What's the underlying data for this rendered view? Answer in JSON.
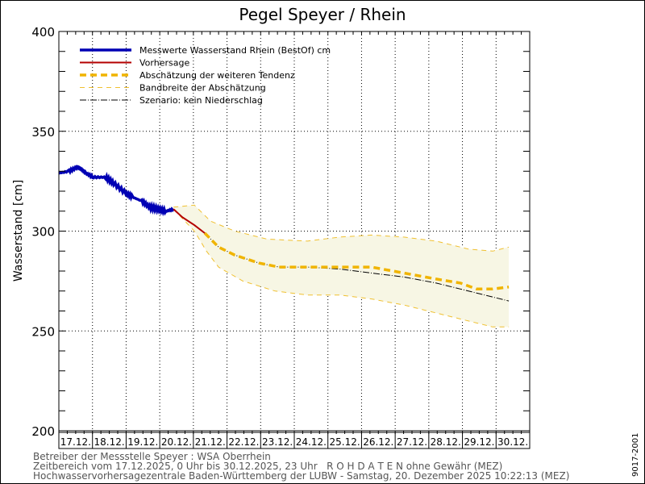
{
  "chart_data": {
    "type": "line",
    "title": "Pegel Speyer / Rhein",
    "ylabel": "Wasserstand [cm]",
    "xlabel": "",
    "ylim": [
      200,
      400
    ],
    "xlim_days": [
      0,
      14
    ],
    "yticks": [
      200,
      250,
      300,
      350,
      400
    ],
    "xtick_labels": [
      "17.12.",
      "18.12.",
      "19.12.",
      "20.12.",
      "21.12.",
      "22.12.",
      "23.12.",
      "24.12.",
      "25.12.",
      "26.12.",
      "27.12.",
      "28.12.",
      "29.12.",
      "30.12."
    ],
    "grid": true,
    "legend_position": "top-left",
    "x_unit": "days since 17.12.2025 00:00",
    "series": [
      {
        "name": "Messwerte Wasserstand Rhein (BestOf)  cm",
        "color": "#0000b4",
        "style": "solid-thick",
        "x": [
          0,
          0.3,
          0.55,
          0.67,
          0.8,
          1.03,
          1.39,
          1.63,
          1.99,
          2.2,
          2.47,
          2.7,
          2.95,
          3.19,
          3.41
        ],
        "y": [
          329,
          330,
          332,
          331,
          329,
          327,
          327,
          324,
          319,
          317,
          315,
          312,
          311,
          310,
          311
        ]
      },
      {
        "name": "Vorhersage",
        "color": "#b40000",
        "style": "solid",
        "x": [
          3.41,
          3.67,
          4.03,
          4.34
        ],
        "y": [
          311,
          307,
          303,
          299
        ]
      },
      {
        "name": "Abschätzung der weiteren Tendenz",
        "color": "#f0b400",
        "style": "dashed-thick",
        "x": [
          4.34,
          4.75,
          5.23,
          5.95,
          6.55,
          7.39,
          8.35,
          9.3,
          10.26,
          11.22,
          11.94,
          12.42,
          12.9,
          13.38
        ],
        "y": [
          299,
          292,
          288,
          284,
          282,
          282,
          282,
          282,
          279,
          276,
          274,
          271,
          271,
          272
        ]
      },
      {
        "name": "Bandbreite der Abschätzung",
        "color": "#f0c030",
        "style": "dashed",
        "upper": {
          "x": [
            3.41,
            4.03,
            4.51,
            5.23,
            6.19,
            7.39,
            8.35,
            9.3,
            10.26,
            11.22,
            12.18,
            12.9,
            13.38
          ],
          "y": [
            312,
            313,
            305,
            300,
            296,
            295,
            297,
            298,
            297,
            295,
            291,
            290,
            292
          ]
        },
        "lower": {
          "x": [
            3.41,
            4.03,
            4.39,
            4.75,
            5.47,
            6.43,
            7.39,
            8.35,
            9.3,
            10.26,
            11.22,
            12.18,
            12.9,
            13.38
          ],
          "y": [
            311,
            300,
            290,
            282,
            275,
            270,
            268,
            268,
            266,
            263,
            259,
            255,
            252,
            252
          ]
        }
      },
      {
        "name": "Szenario: kein Niederschlag",
        "color": "#000000",
        "style": "dash-dot",
        "x": [
          4.34,
          4.75,
          5.23,
          5.95,
          6.55,
          7.39,
          8.35,
          9.3,
          10.26,
          11.22,
          11.94,
          12.66,
          13.38
        ],
        "y": [
          299,
          292,
          288,
          284,
          282,
          282,
          281,
          279,
          277,
          274,
          271,
          268,
          265
        ]
      }
    ]
  },
  "footer": {
    "line1": "Betreiber der Messstelle Speyer : WSA Oberrhein",
    "line2": "Zeitbereich vom 17.12.2025, 0 Uhr bis 30.12.2025, 23 Uhr   R O H D A T E N ohne Gewähr (MEZ)",
    "line3": "Hochwasservorhersagezentrale Baden-Württemberg der LUBW - Samstag, 20. Dezember 2025 10:22:13 (MEZ)",
    "side_code": "9017-2001"
  }
}
